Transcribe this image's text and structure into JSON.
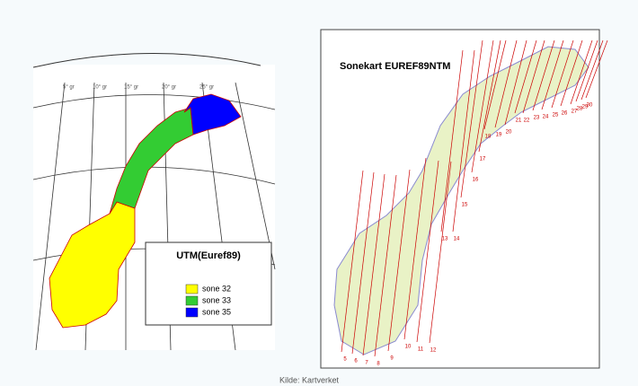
{
  "left_map": {
    "meridian_labels": [
      "5° gr",
      "10° gr",
      "15° gr",
      "20° gr",
      "25° gr"
    ],
    "legend": {
      "title": "UTM(Euref89)",
      "items": [
        {
          "label": "sone 32",
          "color": "#ffff00"
        },
        {
          "label": "sone 33",
          "color": "#33cc33"
        },
        {
          "label": "sone 35",
          "color": "#0000ff"
        }
      ]
    }
  },
  "right_map": {
    "title": "Sonekart EUREF89NTM",
    "zones": [
      5,
      6,
      7,
      8,
      9,
      10,
      11,
      12,
      13,
      14,
      15,
      16,
      17,
      18,
      19,
      20,
      21,
      22,
      23,
      24,
      25,
      26,
      27,
      28,
      29,
      30
    ],
    "zone_color": "#cc0000"
  },
  "caption": "Kilde: Kartverket"
}
